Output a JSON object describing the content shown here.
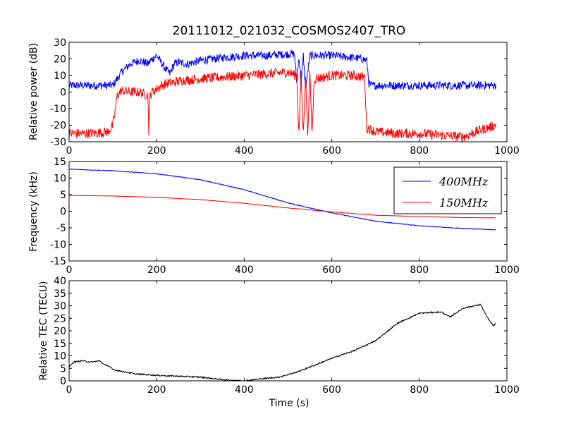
{
  "chart_data": {
    "title": "20111012_021032_COSMOS2407_TRO",
    "xlabel": "Time (s)",
    "colors": {
      "series_400": "#0000ff",
      "series_150": "#ff0000",
      "tec": "#000000"
    },
    "panels": [
      {
        "type": "line",
        "ylabel": "Relative power (dB)",
        "xlim": [
          0,
          1000
        ],
        "ylim": [
          -30,
          30
        ],
        "xticks": [
          0,
          200,
          400,
          600,
          800,
          1000
        ],
        "yticks": [
          -30,
          -20,
          -10,
          0,
          10,
          20,
          30
        ],
        "legend": null,
        "series": [
          {
            "color": "#0000ff",
            "noise": 2.5,
            "x": [
              0,
              50,
              100,
              105,
              120,
              140,
              160,
              180,
              190,
              200,
              210,
              220,
              230,
              240,
              250,
              270,
              300,
              330,
              360,
              400,
              450,
              500,
              515,
              520,
              525,
              530,
              535,
              540,
              550,
              560,
              600,
              640,
              670,
              680,
              685,
              690,
              700,
              750,
              800,
              850,
              900,
              950,
              975
            ],
            "y": [
              4,
              4,
              4,
              6,
              12,
              17,
              19,
              17,
              20,
              22,
              18,
              14,
              11,
              17,
              18,
              17,
              19,
              20,
              21,
              22,
              22,
              23,
              23,
              5,
              22,
              5,
              22,
              2,
              22,
              22,
              22,
              21,
              20,
              19,
              5,
              4,
              4,
              4,
              4,
              4,
              4,
              4,
              4
            ]
          },
          {
            "color": "#ff0000",
            "noise": 3,
            "x": [
              0,
              50,
              90,
              100,
              105,
              110,
              120,
              140,
              160,
              180,
              182,
              185,
              190,
              200,
              220,
              240,
              260,
              300,
              350,
              400,
              450,
              500,
              520,
              525,
              530,
              535,
              540,
              545,
              550,
              555,
              560,
              600,
              650,
              675,
              680,
              685,
              700,
              750,
              800,
              850,
              900,
              950,
              975
            ],
            "y": [
              -25,
              -25,
              -24,
              -20,
              -12,
              -2,
              1,
              0,
              0,
              -2,
              -23,
              -2,
              0,
              2,
              5,
              6,
              7,
              8,
              9,
              10,
              11,
              12,
              10,
              -25,
              10,
              -25,
              10,
              -25,
              10,
              -25,
              8,
              10,
              10,
              9,
              -22,
              -22,
              -24,
              -25,
              -25,
              -26,
              -27,
              -22,
              -20
            ]
          }
        ]
      },
      {
        "type": "line",
        "ylabel": "Frequency (kHz)",
        "xlim": [
          0,
          1000
        ],
        "ylim": [
          -15,
          15
        ],
        "xticks": [
          0,
          200,
          400,
          600,
          800,
          1000
        ],
        "yticks": [
          -15,
          -10,
          -5,
          0,
          5,
          10,
          15
        ],
        "legend": "top-right",
        "series": [
          {
            "name": "400MHz",
            "color": "#0000ff",
            "noise": 0.1,
            "x": [
              0,
              100,
              200,
              300,
              400,
              500,
              600,
              700,
              800,
              900,
              975
            ],
            "y": [
              12.7,
              12.2,
              11.3,
              9.5,
              6.5,
              2.5,
              -0.5,
              -3.0,
              -4.4,
              -5.2,
              -5.6
            ]
          },
          {
            "name": "150MHz",
            "color": "#ff0000",
            "noise": 0.05,
            "x": [
              0,
              100,
              200,
              300,
              400,
              500,
              600,
              700,
              800,
              900,
              975
            ],
            "y": [
              4.8,
              4.6,
              4.2,
              3.5,
              2.4,
              1.0,
              -0.2,
              -1.2,
              -1.6,
              -1.9,
              -2.0
            ]
          }
        ]
      },
      {
        "type": "line",
        "ylabel": "Relative TEC (TECU)",
        "xlim": [
          0,
          1000
        ],
        "ylim": [
          0,
          40
        ],
        "xticks": [
          0,
          200,
          400,
          600,
          800,
          1000
        ],
        "yticks": [
          0,
          5,
          10,
          15,
          20,
          25,
          30,
          35,
          40
        ],
        "legend": null,
        "series": [
          {
            "color": "#000000",
            "noise": 0.25,
            "x": [
              0,
              10,
              30,
              50,
              70,
              80,
              90,
              100,
              150,
              200,
              300,
              350,
              400,
              420,
              450,
              480,
              500,
              520,
              550,
              600,
              650,
              700,
              750,
              800,
              850,
              870,
              900,
              940,
              950,
              960,
              970,
              975
            ],
            "y": [
              5.5,
              7.5,
              8.0,
              7.5,
              8.0,
              6.5,
              6.0,
              4.5,
              2.8,
              2.2,
              1.5,
              0.5,
              0.0,
              0.5,
              1.0,
              1.5,
              2.5,
              3.5,
              5.5,
              9.0,
              12.0,
              16.0,
              23.0,
              27.0,
              27.5,
              25.5,
              29.0,
              30.5,
              27.0,
              24.0,
              22.0,
              23.0
            ]
          }
        ]
      }
    ]
  }
}
